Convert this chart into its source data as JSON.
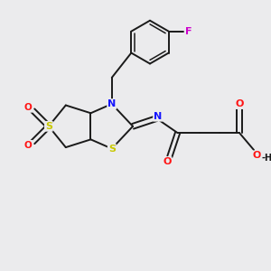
{
  "background_color": "#ebebed",
  "bond_color": "#1a1a1a",
  "atom_colors": {
    "N": "#1414ff",
    "S": "#c8c800",
    "O": "#ff1414",
    "F": "#cc00cc",
    "C": "#1a1a1a"
  },
  "figsize": [
    3.0,
    3.0
  ],
  "dpi": 100
}
